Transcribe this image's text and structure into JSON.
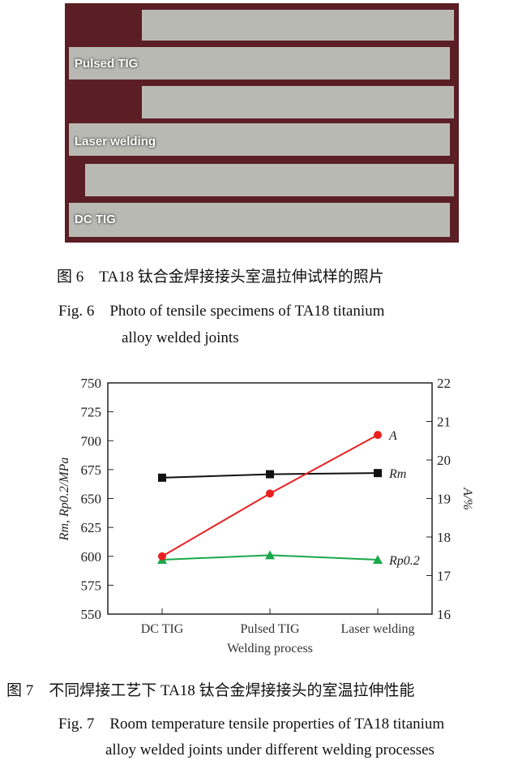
{
  "figure6": {
    "photo_labels": [
      "Pulsed TIG",
      "Laser welding",
      "DC TIG"
    ],
    "caption_cn": "图 6　TA18 钛合金焊接接头室温拉伸试样的照片",
    "caption_en_line1": "Fig. 6　Photo of tensile specimens of TA18 titanium",
    "caption_en_line2": "alloy welded joints"
  },
  "figure7": {
    "caption_cn": "图 7　不同焊接工艺下 TA18 钛合金焊接接头的室温拉伸性能",
    "caption_en_line1": "Fig. 7　Room temperature tensile properties of TA18 titanium",
    "caption_en_line2": "alloy welded joints under different welding processes"
  },
  "chart_data": {
    "type": "line",
    "categories": [
      "DC TIG",
      "Pulsed TIG",
      "Laser welding"
    ],
    "xlabel": "Welding process",
    "ylabel_left": "Rm, Rp0.2/MPa",
    "ylabel_right": "A/%",
    "ylim_left": [
      550,
      750
    ],
    "yticks_left": [
      550,
      575,
      600,
      625,
      650,
      675,
      700,
      725,
      750
    ],
    "ylim_right": [
      16,
      22
    ],
    "yticks_right": [
      16,
      17,
      18,
      19,
      20,
      21,
      22
    ],
    "grid": false,
    "series": [
      {
        "name": "Rm",
        "axis": "left",
        "marker": "square",
        "color": "#111111",
        "values": [
          668,
          671,
          672
        ]
      },
      {
        "name": "Rp0.2",
        "axis": "left",
        "marker": "triangle",
        "color": "#1aa84a",
        "values": [
          597,
          601,
          597
        ]
      },
      {
        "name": "A",
        "axis": "right",
        "marker": "circle",
        "color": "#e82020",
        "values": [
          17.5,
          19.13,
          20.65
        ]
      }
    ]
  }
}
